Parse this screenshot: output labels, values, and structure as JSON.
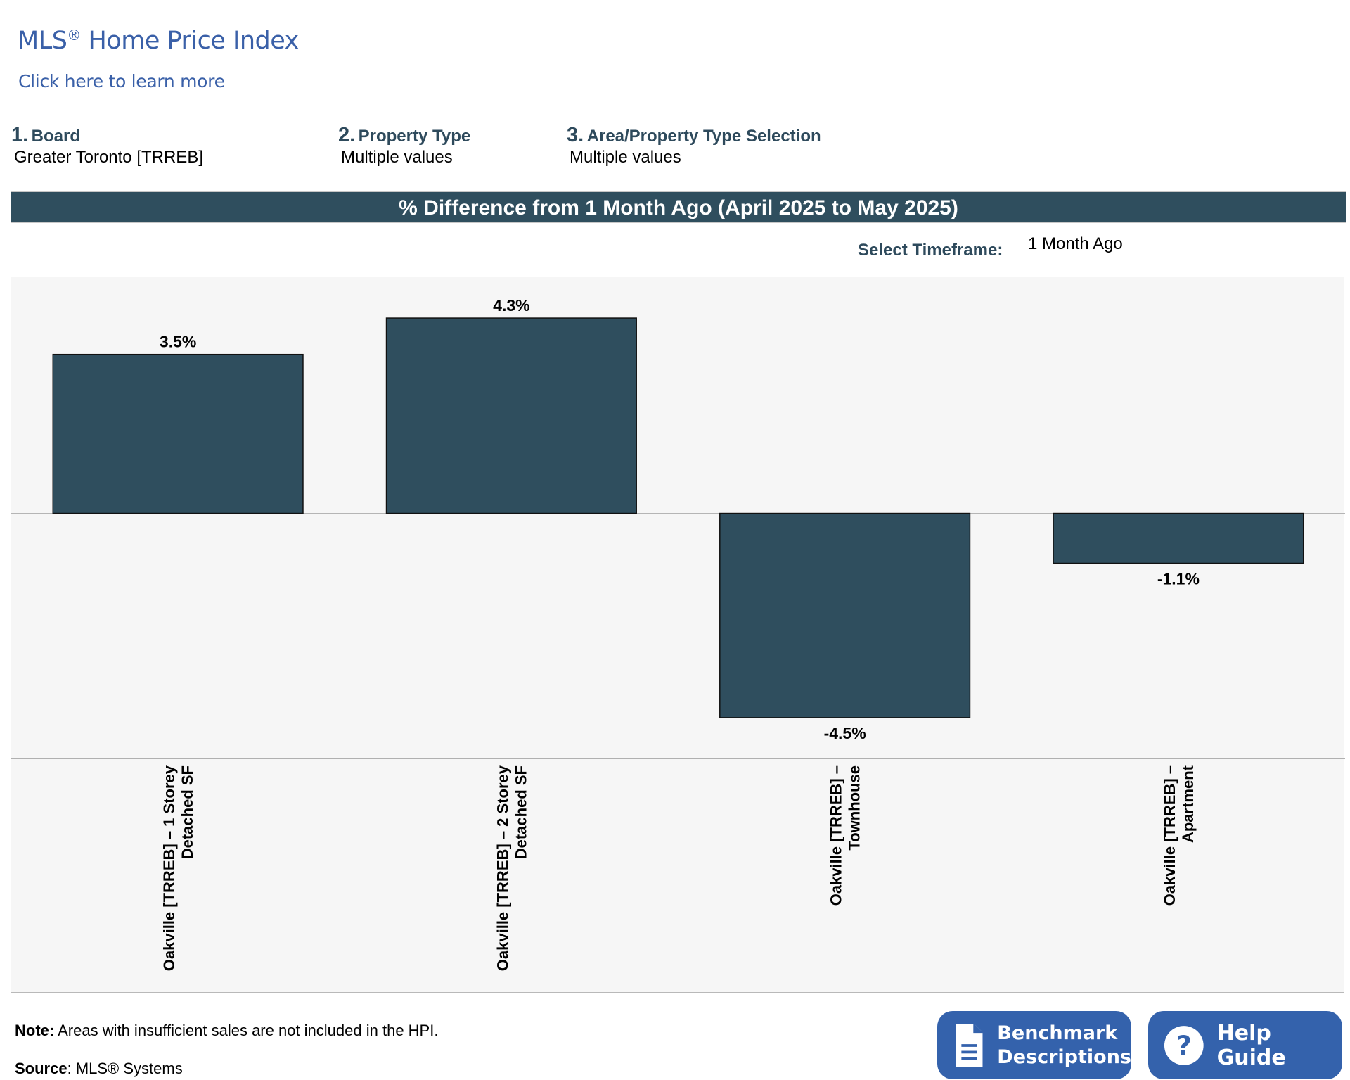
{
  "header": {
    "title": "MLS",
    "title_mark": "®",
    "title_rest": " Home Price Index",
    "learn_more": "Click here to learn more"
  },
  "filters": [
    {
      "num": "1.",
      "label": "Board",
      "value": "Greater Toronto [TRREB]"
    },
    {
      "num": "2.",
      "label": "Property Type",
      "value": "Multiple values"
    },
    {
      "num": "3.",
      "label": "Area/Property Type Selection",
      "value": "Multiple values"
    }
  ],
  "banner": "% Difference from 1 Month Ago (April 2025 to May 2025)",
  "timeframe": {
    "label": "Select Timeframe:",
    "value": "1 Month Ago"
  },
  "chart_data": {
    "type": "bar",
    "categories": [
      [
        "Oakville [TRREB] – 1 Storey",
        "Detached SF"
      ],
      [
        "Oakville [TRREB] – 2 Storey",
        "Detached SF"
      ],
      [
        "Oakville [TRREB] –",
        "Townhouse"
      ],
      [
        "Oakville [TRREB] –",
        "Apartment"
      ]
    ],
    "values": [
      3.5,
      4.3,
      -4.5,
      -1.1
    ],
    "value_labels": [
      "3.5%",
      "4.3%",
      "-4.5%",
      "-1.1%"
    ],
    "ylim": [
      -5.4,
      5.2
    ],
    "bar_color": "#2f4e5e",
    "grid": true
  },
  "footer": {
    "note_label": "Note:",
    "note_text": " Areas with insufficient sales are not included in the HPI.",
    "source_label": "Source",
    "source_text": ": MLS® Systems"
  },
  "buttons": {
    "benchmark_line1": "Benchmark",
    "benchmark_line2": "Descriptions",
    "help": "Help Guide"
  }
}
